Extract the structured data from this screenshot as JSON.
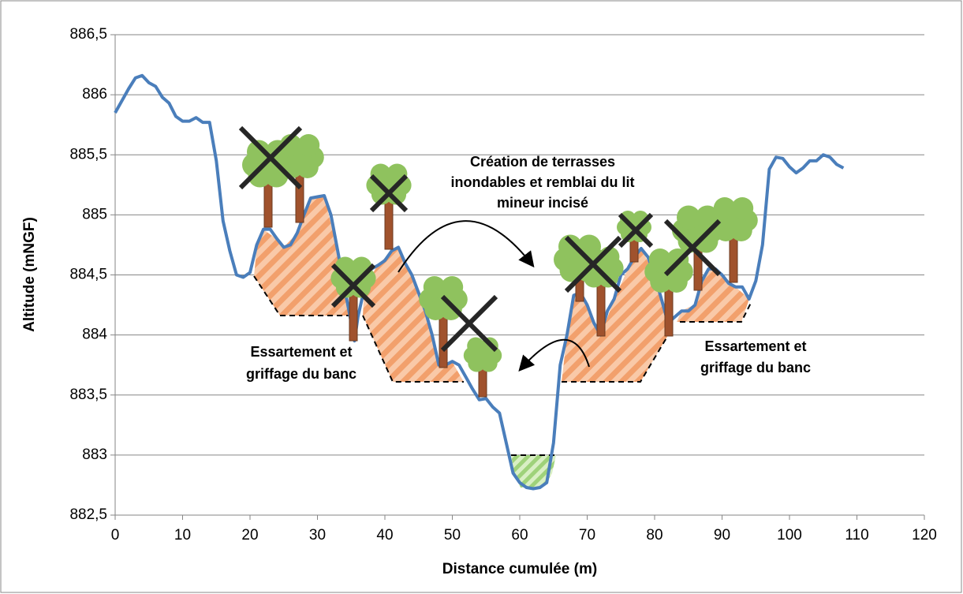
{
  "chart_data": {
    "type": "line",
    "xlabel": "Distance cumulée (m)",
    "ylabel": "Altitude (mNGF)",
    "color": "#4a7ebb",
    "grid": true,
    "xlim": [
      0,
      120
    ],
    "xticks": [
      0,
      10,
      20,
      30,
      40,
      50,
      60,
      70,
      80,
      90,
      100,
      110,
      120
    ],
    "ylim": [
      882.5,
      886.5
    ],
    "yticks": [
      {
        "value": 882.5,
        "label": "882,5"
      },
      883,
      {
        "value": 883.5,
        "label": "883,5"
      },
      884,
      {
        "value": 884.5,
        "label": "884,5"
      },
      885,
      {
        "value": 885.5,
        "label": "885,5"
      },
      886,
      {
        "value": 886.5,
        "label": "886,5"
      }
    ],
    "x": [
      0,
      1,
      2,
      3,
      4,
      5,
      6,
      7,
      8,
      9,
      10,
      11,
      12,
      13,
      14,
      15,
      16,
      17,
      18,
      19,
      20,
      21,
      22,
      23,
      24,
      25,
      26,
      27,
      28,
      29,
      30,
      31,
      32,
      33,
      34,
      35,
      35.5,
      36,
      37,
      38,
      39,
      40,
      41,
      42,
      43,
      44,
      45,
      46,
      47,
      48,
      49,
      50,
      51,
      52,
      53,
      54,
      55,
      56,
      57,
      58,
      59,
      60,
      61,
      62,
      63,
      64,
      65,
      66,
      67,
      68,
      69,
      70,
      71,
      72,
      73,
      74,
      75,
      76,
      77,
      78,
      79,
      80,
      81,
      82,
      83,
      84,
      85,
      86,
      87,
      88,
      89,
      90,
      91,
      92,
      93,
      94,
      95,
      96,
      97,
      98,
      99,
      100,
      101,
      102,
      103,
      104,
      105,
      106,
      107,
      108
    ],
    "values": [
      885.85,
      885.95,
      886.05,
      886.14,
      886.16,
      886.1,
      886.07,
      885.98,
      885.93,
      885.82,
      885.78,
      885.78,
      885.81,
      885.77,
      885.77,
      885.45,
      884.95,
      884.7,
      884.5,
      884.48,
      884.52,
      884.75,
      884.88,
      884.88,
      884.8,
      884.73,
      884.75,
      884.85,
      885.0,
      885.14,
      885.15,
      885.16,
      885.0,
      884.7,
      884.4,
      884.1,
      883.95,
      884.15,
      884.4,
      884.55,
      884.58,
      884.62,
      884.7,
      884.73,
      884.6,
      884.5,
      884.35,
      884.2,
      884.0,
      883.75,
      883.75,
      883.78,
      883.75,
      883.65,
      883.55,
      883.46,
      883.47,
      883.4,
      883.35,
      883.1,
      882.85,
      882.77,
      882.73,
      882.72,
      882.73,
      882.77,
      883.1,
      883.75,
      884.0,
      884.33,
      884.35,
      884.25,
      884.1,
      884.0,
      884.2,
      884.3,
      884.5,
      884.55,
      884.65,
      884.72,
      884.65,
      884.5,
      884.3,
      884.1,
      884.15,
      884.2,
      884.2,
      884.25,
      884.45,
      884.55,
      884.55,
      884.5,
      884.43,
      884.4,
      884.4,
      884.3,
      884.45,
      884.75,
      885.38,
      885.48,
      885.47,
      885.4,
      885.35,
      885.39,
      885.45,
      885.45,
      885.5,
      885.48,
      885.42,
      885.39
    ],
    "annotations": [
      {
        "lines": [
          "Création de terrasses",
          "inondables et remblai du lit",
          "mineur incisé"
        ]
      },
      {
        "lines": [
          "Essartement et",
          "griffage du banc"
        ]
      },
      {
        "lines": [
          "Essartement et",
          "griffage du banc"
        ]
      }
    ]
  }
}
